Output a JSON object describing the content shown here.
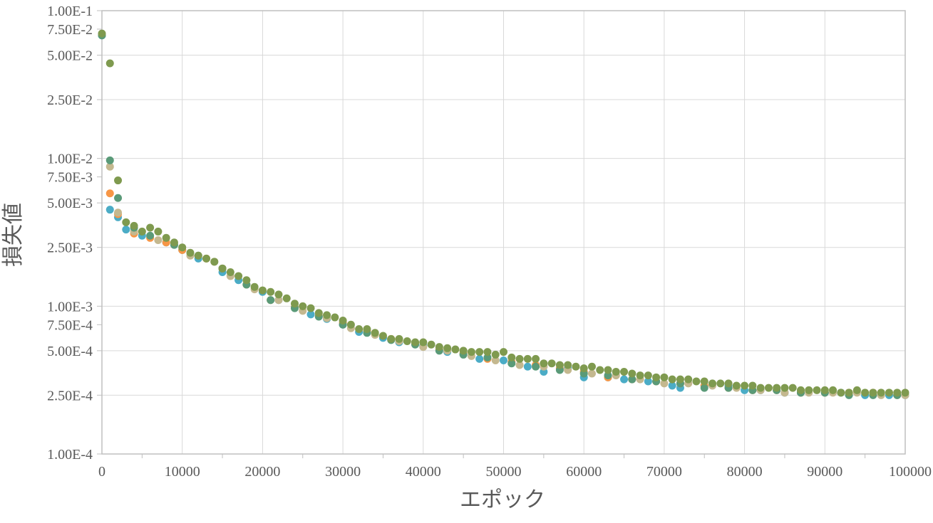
{
  "chart_data": {
    "type": "scatter",
    "xlabel": "エポック",
    "ylabel": "損失値",
    "xlim": [
      0,
      100000
    ],
    "ylim": [
      0.0001,
      0.1
    ],
    "y_scale": "log",
    "grid": true,
    "legend": "none",
    "x_ticks": [
      0,
      10000,
      20000,
      30000,
      40000,
      50000,
      60000,
      70000,
      80000,
      90000,
      100000
    ],
    "x_tick_labels": [
      "0",
      "10000",
      "20000",
      "30000",
      "40000",
      "50000",
      "60000",
      "70000",
      "80000",
      "90000",
      "100000"
    ],
    "y_ticks": [
      0.1,
      0.075,
      0.05,
      0.025,
      0.01,
      0.0075,
      0.005,
      0.0025,
      0.001,
      0.00075,
      0.0005,
      0.00025,
      0.0001
    ],
    "y_tick_labels": [
      "1.00E-1",
      "7.50E-2",
      "5.00E-2",
      "2.50E-2",
      "1.00E-2",
      "7.50E-3",
      "5.00E-3",
      "2.50E-3",
      "1.00E-3",
      "7.50E-4",
      "5.00E-4",
      "2.50E-4",
      "1.00E-4"
    ],
    "y_tick_lines": [
      0.1,
      0.05,
      0.025,
      0.01,
      0.005,
      0.0025,
      0.001,
      0.0005,
      0.00025,
      0.0001
    ],
    "x_minor_lines": [
      5000,
      15000,
      25000,
      35000,
      45000,
      55000,
      65000,
      75000,
      85000,
      95000
    ],
    "series": [
      {
        "color": "#4bacc6",
        "x": [
          0,
          1000,
          2000,
          3000,
          5000,
          8000,
          10000,
          12000,
          15000,
          17000,
          20000,
          22000,
          24000,
          26000,
          28000,
          30000,
          32000,
          35000,
          37000,
          40000,
          43000,
          47000,
          50000,
          53000,
          55000,
          58000,
          60000,
          63000,
          65000,
          68000,
          71000,
          72000,
          75000,
          78000,
          80000,
          82000,
          85000,
          87000,
          90000,
          92000,
          95000,
          98000,
          100000
        ],
        "y": [
          0.068,
          0.0045,
          0.004,
          0.0033,
          0.003,
          0.0027,
          0.0024,
          0.0021,
          0.0017,
          0.0015,
          0.00125,
          0.0011,
          0.00098,
          0.00088,
          0.00082,
          0.00075,
          0.00067,
          0.00061,
          0.00057,
          0.00054,
          0.00049,
          0.00044,
          0.00043,
          0.00039,
          0.00036,
          0.00038,
          0.00033,
          0.00033,
          0.00032,
          0.00031,
          0.00029,
          0.00028,
          0.00029,
          0.00029,
          0.00027,
          0.00027,
          0.00026,
          0.00026,
          0.00026,
          0.00026,
          0.00025,
          0.00025,
          0.00025
        ]
      },
      {
        "color": "#f79646",
        "x": [
          0,
          1000,
          2000,
          4000,
          6000,
          8000,
          10000,
          13000,
          15000,
          18000,
          21000,
          24000,
          27000,
          30000,
          33000,
          36000,
          39000,
          42000,
          45000,
          48000,
          51000,
          54000,
          57000,
          60000,
          63000,
          66000,
          69000,
          72000,
          75000,
          78000,
          81000,
          84000,
          87000,
          90000,
          93000,
          96000,
          99000
        ],
        "y": [
          0.069,
          0.0058,
          0.0042,
          0.0031,
          0.0029,
          0.0027,
          0.0024,
          0.0021,
          0.0018,
          0.0014,
          0.0011,
          0.00098,
          0.00086,
          0.00077,
          0.00068,
          0.0006,
          0.00056,
          0.00051,
          0.00048,
          0.00044,
          0.00042,
          0.0004,
          0.00038,
          0.00036,
          0.00033,
          0.00032,
          0.00031,
          0.0003,
          0.00029,
          0.00028,
          0.00027,
          0.00027,
          0.00026,
          0.00026,
          0.00026,
          0.00026,
          0.00025
        ]
      },
      {
        "color": "#c4b88f",
        "x": [
          0,
          1000,
          2000,
          4000,
          7000,
          9000,
          11000,
          14000,
          16000,
          19000,
          22000,
          25000,
          28000,
          31000,
          34000,
          37000,
          40000,
          43000,
          46000,
          49000,
          52000,
          55000,
          58000,
          61000,
          64000,
          67000,
          70000,
          73000,
          76000,
          79000,
          82000,
          85000,
          88000,
          91000,
          94000,
          97000,
          100000
        ],
        "y": [
          0.069,
          0.0088,
          0.0043,
          0.0032,
          0.0028,
          0.0026,
          0.0022,
          0.002,
          0.0016,
          0.0013,
          0.0011,
          0.00093,
          0.00083,
          0.00071,
          0.00064,
          0.00058,
          0.00053,
          0.0005,
          0.00046,
          0.00043,
          0.0004,
          0.00039,
          0.00037,
          0.00035,
          0.00034,
          0.00032,
          0.0003,
          0.0003,
          0.00029,
          0.00028,
          0.00027,
          0.00026,
          0.00026,
          0.00026,
          0.00026,
          0.00025,
          0.00025
        ]
      },
      {
        "color": "#5a9a78",
        "x": [
          0,
          1000,
          2000,
          4000,
          6000,
          9000,
          12000,
          15000,
          18000,
          21000,
          24000,
          27000,
          30000,
          33000,
          36000,
          39000,
          42000,
          45000,
          48000,
          51000,
          54000,
          57000,
          60000,
          63000,
          66000,
          69000,
          72000,
          75000,
          78000,
          81000,
          84000,
          87000,
          90000,
          93000,
          96000,
          99000
        ],
        "y": [
          0.068,
          0.0097,
          0.0054,
          0.0034,
          0.003,
          0.0026,
          0.0022,
          0.0018,
          0.0014,
          0.0011,
          0.00097,
          0.00085,
          0.00075,
          0.00066,
          0.00059,
          0.00055,
          0.0005,
          0.00047,
          0.00045,
          0.00041,
          0.00039,
          0.00037,
          0.00035,
          0.00034,
          0.00032,
          0.00031,
          0.0003,
          0.00028,
          0.00028,
          0.00027,
          0.00027,
          0.00026,
          0.00026,
          0.00025,
          0.00025,
          0.00025
        ]
      },
      {
        "color": "#7f9a4f",
        "x": [
          0,
          1000,
          2000,
          3000,
          4000,
          5000,
          6000,
          7000,
          8000,
          9000,
          10000,
          11000,
          12000,
          13000,
          14000,
          15000,
          16000,
          17000,
          18000,
          19000,
          20000,
          21000,
          22000,
          23000,
          24000,
          25000,
          26000,
          27000,
          28000,
          29000,
          30000,
          31000,
          32000,
          33000,
          34000,
          35000,
          36000,
          37000,
          38000,
          39000,
          40000,
          41000,
          42000,
          43000,
          44000,
          45000,
          46000,
          47000,
          48000,
          49000,
          50000,
          51000,
          52000,
          53000,
          54000,
          55000,
          56000,
          57000,
          58000,
          59000,
          60000,
          61000,
          62000,
          63000,
          64000,
          65000,
          66000,
          67000,
          68000,
          69000,
          70000,
          71000,
          72000,
          73000,
          74000,
          75000,
          76000,
          77000,
          78000,
          79000,
          80000,
          81000,
          82000,
          83000,
          84000,
          85000,
          86000,
          87000,
          88000,
          89000,
          90000,
          91000,
          92000,
          93000,
          94000,
          95000,
          96000,
          97000,
          98000,
          99000,
          100000
        ],
        "y": [
          0.07,
          0.044,
          0.0071,
          0.0037,
          0.0035,
          0.0032,
          0.0034,
          0.0032,
          0.0029,
          0.0027,
          0.0025,
          0.0023,
          0.0022,
          0.0021,
          0.002,
          0.0018,
          0.0017,
          0.0016,
          0.0015,
          0.00135,
          0.00128,
          0.00125,
          0.0012,
          0.00113,
          0.00104,
          0.001,
          0.00097,
          0.0009,
          0.00087,
          0.00084,
          0.0008,
          0.00075,
          0.0007,
          0.0007,
          0.00066,
          0.00063,
          0.0006,
          0.0006,
          0.00058,
          0.00057,
          0.00057,
          0.00055,
          0.00053,
          0.00052,
          0.00051,
          0.0005,
          0.00049,
          0.00049,
          0.00049,
          0.00047,
          0.00049,
          0.00045,
          0.00044,
          0.00044,
          0.00044,
          0.00041,
          0.00041,
          0.0004,
          0.0004,
          0.00039,
          0.00038,
          0.00039,
          0.00037,
          0.00037,
          0.00036,
          0.00036,
          0.00035,
          0.00034,
          0.00034,
          0.00033,
          0.00033,
          0.00032,
          0.00032,
          0.00032,
          0.00031,
          0.00031,
          0.0003,
          0.0003,
          0.0003,
          0.00029,
          0.00029,
          0.00029,
          0.00028,
          0.00028,
          0.00028,
          0.00028,
          0.00028,
          0.00027,
          0.00027,
          0.00027,
          0.00027,
          0.00027,
          0.00026,
          0.00026,
          0.00027,
          0.00026,
          0.00026,
          0.00026,
          0.00026,
          0.00026,
          0.00026
        ]
      }
    ]
  }
}
